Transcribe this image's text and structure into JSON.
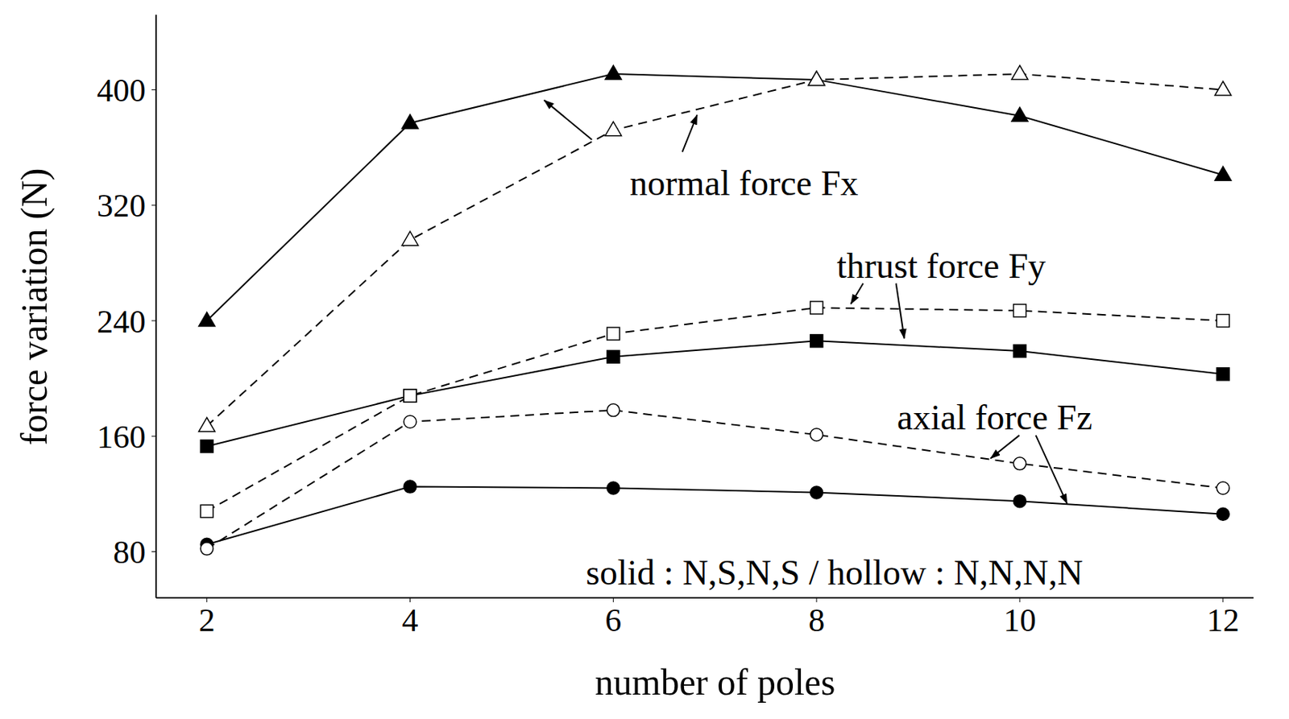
{
  "chart_data": {
    "type": "line",
    "x_label": "number of poles",
    "y_label": "force variation (N)",
    "x": [
      2,
      4,
      6,
      8,
      10,
      12
    ],
    "xlim": [
      1.5,
      12.3
    ],
    "xticks": [
      2,
      4,
      6,
      8,
      10,
      12
    ],
    "ylim": [
      48,
      452
    ],
    "yticks": [
      80,
      160,
      240,
      320,
      400
    ],
    "grid": false,
    "series": [
      {
        "color": "#000000",
        "marker": "triangle",
        "line_style": "solid",
        "values": [
          240,
          377,
          411,
          407,
          382,
          341
        ]
      },
      {
        "color": "#000000",
        "marker": "triangle-open",
        "line_style": "dashed",
        "values": [
          167,
          296,
          372,
          407,
          411,
          400
        ]
      },
      {
        "color": "#000000",
        "marker": "square",
        "line_style": "solid",
        "values": [
          153,
          188,
          215,
          226,
          219,
          203
        ]
      },
      {
        "color": "#000000",
        "marker": "square-open",
        "line_style": "dashed",
        "values": [
          108,
          188,
          231,
          249,
          247,
          240
        ]
      },
      {
        "color": "#000000",
        "marker": "circle",
        "line_style": "solid",
        "values": [
          85,
          125,
          124,
          121,
          115,
          106
        ]
      },
      {
        "color": "#000000",
        "marker": "circle-open",
        "line_style": "dashed",
        "values": [
          82,
          170,
          178,
          161,
          141,
          124
        ]
      }
    ],
    "annotations": [
      "normal force Fx",
      "thrust force Fy",
      "axial force Fz",
      "solid : N,S,N,S / hollow : N,N,N,N"
    ]
  }
}
